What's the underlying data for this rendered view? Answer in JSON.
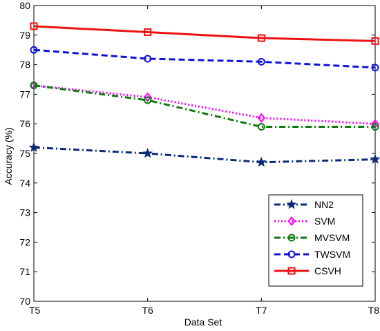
{
  "chart_data": {
    "type": "line",
    "xlabel": "Data Set",
    "ylabel": "Accuracy (%)",
    "categories": [
      "T5",
      "T6",
      "T7",
      "T8"
    ],
    "ylim": [
      70,
      80
    ],
    "yticks": [
      "70",
      "71",
      "72",
      "73",
      "74",
      "75",
      "76",
      "77",
      "78",
      "79",
      "80"
    ],
    "grid": false,
    "legend_position": "bottom-right",
    "series": [
      {
        "name": "NN2",
        "values": [
          75.2,
          75.0,
          74.7,
          74.8
        ],
        "color": "#0a2a7a",
        "marker": "star",
        "dash": "dashdot"
      },
      {
        "name": "SVM",
        "values": [
          77.3,
          76.9,
          76.2,
          76.0
        ],
        "color": "#ff00ff",
        "marker": "diamond",
        "dash": "dotted"
      },
      {
        "name": "MVSVM",
        "values": [
          77.3,
          76.8,
          75.9,
          75.9
        ],
        "color": "#0b7a0b",
        "marker": "circle",
        "dash": "dashdot"
      },
      {
        "name": "TWSVM",
        "values": [
          78.5,
          78.2,
          78.1,
          77.9
        ],
        "color": "#1010e0",
        "marker": "circle",
        "dash": "dashed"
      },
      {
        "name": "CSVH",
        "values": [
          79.3,
          79.1,
          78.9,
          78.8
        ],
        "color": "#ee1111",
        "marker": "square",
        "dash": "solid"
      }
    ]
  }
}
